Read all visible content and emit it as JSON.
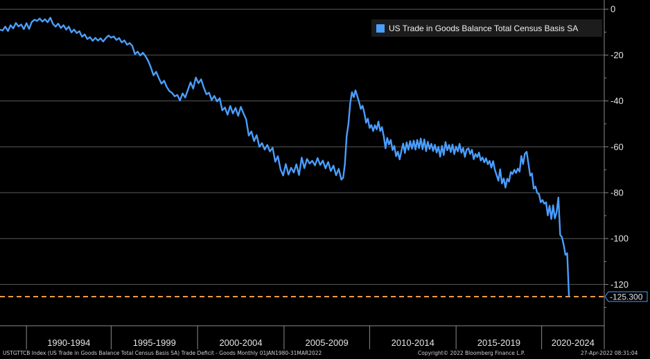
{
  "chart_data": {
    "type": "line",
    "series": [
      {
        "name": "US Trade in Goods Balance Total Census Basis SA",
        "color": "#4a9eff",
        "points": [
          [
            1987.0,
            -8.9
          ],
          [
            1987.3,
            -9.3
          ],
          [
            1987.6,
            -7.6
          ],
          [
            1987.9,
            -9.5
          ],
          [
            1988.2,
            -7.0
          ],
          [
            1988.5,
            -8.4
          ],
          [
            1988.8,
            -6.0
          ],
          [
            1989.1,
            -7.5
          ],
          [
            1989.4,
            -6.7
          ],
          [
            1989.7,
            -8.7
          ],
          [
            1990.0,
            -6.1
          ],
          [
            1990.3,
            -8.6
          ],
          [
            1990.6,
            -5.6
          ],
          [
            1990.9,
            -4.6
          ],
          [
            1991.2,
            -5.1
          ],
          [
            1991.5,
            -4.1
          ],
          [
            1991.8,
            -5.4
          ],
          [
            1992.1,
            -4.4
          ],
          [
            1992.4,
            -5.7
          ],
          [
            1992.7,
            -3.7
          ],
          [
            1993.0,
            -6.4
          ],
          [
            1993.3,
            -7.6
          ],
          [
            1993.6,
            -6.3
          ],
          [
            1993.9,
            -8.2
          ],
          [
            1994.2,
            -7.0
          ],
          [
            1994.5,
            -8.9
          ],
          [
            1994.8,
            -7.6
          ],
          [
            1995.1,
            -10.1
          ],
          [
            1995.4,
            -8.9
          ],
          [
            1995.7,
            -10.4
          ],
          [
            1996.0,
            -9.6
          ],
          [
            1996.3,
            -12.0
          ],
          [
            1996.6,
            -11.0
          ],
          [
            1996.9,
            -13.0
          ],
          [
            1997.2,
            -12.2
          ],
          [
            1997.5,
            -13.8
          ],
          [
            1997.8,
            -12.5
          ],
          [
            1998.1,
            -13.7
          ],
          [
            1998.4,
            -12.7
          ],
          [
            1998.7,
            -14.1
          ],
          [
            1999.0,
            -12.6
          ],
          [
            1999.3,
            -11.5
          ],
          [
            1999.6,
            -12.4
          ],
          [
            1999.9,
            -11.9
          ],
          [
            2000.2,
            -13.4
          ],
          [
            2000.5,
            -12.6
          ],
          [
            2000.8,
            -14.5
          ],
          [
            2001.1,
            -13.6
          ],
          [
            2001.4,
            -15.5
          ],
          [
            2001.7,
            -14.8
          ],
          [
            2002.0,
            -16.0
          ],
          [
            2002.3,
            -19.6
          ],
          [
            2002.6,
            -18.5
          ],
          [
            2002.9,
            -20.2
          ],
          [
            2003.2,
            -19.0
          ],
          [
            2003.5,
            -20.5
          ],
          [
            2003.8,
            -22.6
          ],
          [
            2004.1,
            -25.4
          ],
          [
            2004.4,
            -28.8
          ],
          [
            2004.7,
            -27.3
          ],
          [
            2005.0,
            -30.0
          ],
          [
            2005.3,
            -32.5
          ],
          [
            2005.6,
            -31.2
          ],
          [
            2005.9,
            -33.9
          ],
          [
            2006.2,
            -35.7
          ],
          [
            2006.5,
            -36.5
          ],
          [
            2006.8,
            -38.0
          ],
          [
            2007.1,
            -37.4
          ],
          [
            2007.4,
            -39.8
          ],
          [
            2007.7,
            -36.7
          ],
          [
            2008.0,
            -38.5
          ],
          [
            2008.3,
            -35.2
          ],
          [
            2008.6,
            -31.9
          ],
          [
            2008.9,
            -34.6
          ],
          [
            2009.2,
            -29.8
          ],
          [
            2009.5,
            -32.3
          ],
          [
            2009.8,
            -30.6
          ],
          [
            2010.1,
            -34.2
          ],
          [
            2010.4,
            -37.1
          ],
          [
            2010.7,
            -36.4
          ],
          [
            2011.0,
            -39.6
          ],
          [
            2011.3,
            -37.8
          ],
          [
            2011.6,
            -40.2
          ],
          [
            2011.9,
            -38.8
          ],
          [
            2012.2,
            -44.1
          ],
          [
            2012.5,
            -42.9
          ],
          [
            2012.8,
            -46.0
          ],
          [
            2013.1,
            -42.2
          ],
          [
            2013.4,
            -45.5
          ],
          [
            2013.7,
            -43.0
          ],
          [
            2014.0,
            -46.5
          ],
          [
            2014.3,
            -42.6
          ],
          [
            2014.6,
            -45.4
          ],
          [
            2014.9,
            -48.0
          ],
          [
            2015.2,
            -55.1
          ],
          [
            2015.5,
            -53.3
          ],
          [
            2015.8,
            -57.5
          ],
          [
            2016.1,
            -54.9
          ],
          [
            2016.4,
            -60.0
          ],
          [
            2016.7,
            -58.4
          ],
          [
            2017.0,
            -61.2
          ],
          [
            2017.3,
            -59.2
          ],
          [
            2017.6,
            -62.0
          ],
          [
            2017.9,
            -60.4
          ],
          [
            2018.2,
            -66.5
          ],
          [
            2018.5,
            -64.1
          ],
          [
            2018.8,
            -69.8
          ],
          [
            2019.1,
            -72.5
          ],
          [
            2019.4,
            -67.5
          ],
          [
            2019.7,
            -72.1
          ],
          [
            2020.0,
            -69.1
          ],
          [
            2020.3,
            -71.2
          ],
          [
            2020.6,
            -67.6
          ],
          [
            2020.9,
            -72.3
          ],
          [
            2021.2,
            -64.7
          ],
          [
            2021.5,
            -69.3
          ],
          [
            2021.8,
            -65.3
          ],
          [
            2022.1,
            -67.3
          ],
          [
            2022.4,
            -66.1
          ],
          [
            2022.7,
            -68.1
          ],
          [
            2023.0,
            -64.9
          ],
          [
            2023.3,
            -67.9
          ],
          [
            2023.6,
            -66.0
          ],
          [
            2023.9,
            -69.4
          ],
          [
            2024.2,
            -66.6
          ],
          [
            2024.5,
            -70.6
          ],
          [
            2024.8,
            -68.2
          ],
          [
            2025.1,
            -72.4
          ],
          [
            2025.4,
            -69.6
          ],
          [
            2025.7,
            -74.3
          ],
          [
            2025.9,
            -73.5
          ],
          [
            2026.1,
            -67.5
          ],
          [
            2026.3,
            -55.2
          ],
          [
            2026.5,
            -50.1
          ],
          [
            2026.7,
            -41.0
          ],
          [
            2026.9,
            -36.2
          ],
          [
            2027.1,
            -38.4
          ],
          [
            2027.3,
            -35.4
          ],
          [
            2027.5,
            -37.9
          ],
          [
            2027.7,
            -40.4
          ],
          [
            2027.9,
            -43.5
          ],
          [
            2028.1,
            -42.1
          ],
          [
            2028.3,
            -45.1
          ],
          [
            2028.5,
            -49.5
          ],
          [
            2028.7,
            -47.7
          ],
          [
            2028.9,
            -51.8
          ],
          [
            2029.1,
            -50.5
          ],
          [
            2029.3,
            -53.1
          ],
          [
            2029.5,
            -50.6
          ],
          [
            2029.7,
            -52.4
          ],
          [
            2029.9,
            -49.0
          ],
          [
            2030.1,
            -53.1
          ],
          [
            2030.3,
            -51.4
          ],
          [
            2030.5,
            -55.4
          ],
          [
            2030.7,
            -60.7
          ],
          [
            2030.9,
            -56.1
          ],
          [
            2031.1,
            -59.0
          ],
          [
            2031.3,
            -57.0
          ],
          [
            2031.5,
            -61.4
          ],
          [
            2031.7,
            -59.6
          ],
          [
            2031.9,
            -64.1
          ],
          [
            2032.1,
            -62.1
          ],
          [
            2032.3,
            -65.5
          ],
          [
            2032.5,
            -61.9
          ],
          [
            2032.7,
            -58.6
          ],
          [
            2032.9,
            -62.7
          ],
          [
            2033.1,
            -58.1
          ],
          [
            2033.3,
            -61.3
          ],
          [
            2033.5,
            -57.5
          ],
          [
            2033.7,
            -60.8
          ],
          [
            2033.9,
            -57.3
          ],
          [
            2034.1,
            -61.2
          ],
          [
            2034.3,
            -57.0
          ],
          [
            2034.5,
            -60.6
          ],
          [
            2034.7,
            -56.4
          ],
          [
            2034.9,
            -61.1
          ],
          [
            2035.1,
            -56.8
          ],
          [
            2035.3,
            -61.9
          ],
          [
            2035.5,
            -57.8
          ],
          [
            2035.7,
            -61.0
          ],
          [
            2035.9,
            -58.7
          ],
          [
            2036.1,
            -61.8
          ],
          [
            2036.3,
            -59.1
          ],
          [
            2036.5,
            -62.5
          ],
          [
            2036.7,
            -60.0
          ],
          [
            2036.9,
            -64.3
          ],
          [
            2037.1,
            -59.6
          ],
          [
            2037.3,
            -63.6
          ],
          [
            2037.5,
            -57.9
          ],
          [
            2037.7,
            -61.5
          ],
          [
            2037.9,
            -59.2
          ],
          [
            2038.1,
            -62.3
          ],
          [
            2038.3,
            -59.0
          ],
          [
            2038.5,
            -63.2
          ],
          [
            2038.7,
            -59.9
          ],
          [
            2038.9,
            -62.0
          ],
          [
            2039.1,
            -58.7
          ],
          [
            2039.3,
            -62.6
          ],
          [
            2039.5,
            -60.5
          ],
          [
            2039.7,
            -64.4
          ],
          [
            2039.9,
            -61.2
          ],
          [
            2040.1,
            -60.7
          ],
          [
            2040.3,
            -63.1
          ],
          [
            2040.5,
            -61.3
          ],
          [
            2040.7,
            -65.4
          ],
          [
            2040.9,
            -63.1
          ],
          [
            2041.1,
            -64.5
          ],
          [
            2041.3,
            -62.5
          ],
          [
            2041.5,
            -66.0
          ],
          [
            2041.7,
            -64.6
          ],
          [
            2041.9,
            -66.8
          ],
          [
            2042.1,
            -65.0
          ],
          [
            2042.3,
            -67.6
          ],
          [
            2042.5,
            -66.1
          ],
          [
            2042.7,
            -69.1
          ],
          [
            2042.9,
            -66.2
          ],
          [
            2043.1,
            -70.0
          ],
          [
            2043.3,
            -72.4
          ],
          [
            2043.5,
            -74.8
          ],
          [
            2043.7,
            -69.8
          ],
          [
            2043.9,
            -76.0
          ],
          [
            2044.1,
            -73.8
          ],
          [
            2044.3,
            -77.8
          ],
          [
            2044.5,
            -73.9
          ],
          [
            2044.7,
            -75.2
          ],
          [
            2044.9,
            -71.0
          ],
          [
            2045.1,
            -71.9
          ],
          [
            2045.3,
            -70.0
          ],
          [
            2045.5,
            -71.4
          ],
          [
            2045.7,
            -69.5
          ],
          [
            2045.9,
            -70.8
          ],
          [
            2046.1,
            -64.0
          ],
          [
            2046.3,
            -67.5
          ],
          [
            2046.5,
            -63.0
          ],
          [
            2046.7,
            -62.2
          ],
          [
            2046.9,
            -67.2
          ],
          [
            2047.1,
            -72.6
          ],
          [
            2047.3,
            -71.6
          ],
          [
            2047.5,
            -78.2
          ],
          [
            2047.7,
            -77.3
          ],
          [
            2047.9,
            -80.1
          ],
          [
            2048.1,
            -80.6
          ],
          [
            2048.3,
            -84.2
          ],
          [
            2048.5,
            -83.2
          ],
          [
            2048.7,
            -84.8
          ],
          [
            2048.9,
            -84.2
          ],
          [
            2049.1,
            -89.9
          ],
          [
            2049.3,
            -85.7
          ],
          [
            2049.5,
            -91.5
          ],
          [
            2049.7,
            -85.5
          ],
          [
            2049.9,
            -91.2
          ],
          [
            2050.1,
            -88.4
          ],
          [
            2050.3,
            -82.1
          ],
          [
            2050.5,
            -98.4
          ],
          [
            2050.7,
            -99.4
          ],
          [
            2050.9,
            -102.7
          ],
          [
            2051.1,
            -107.1
          ],
          [
            2051.3,
            -106.4
          ],
          [
            2051.5,
            -125.3
          ]
        ]
      }
    ],
    "x_axis": {
      "labels": [
        "1990-1994",
        "1995-1999",
        "2000-2004",
        "2005-2009",
        "2010-2014",
        "2015-2019",
        "2020-2024"
      ],
      "range": [
        1987.0,
        2055.5
      ]
    },
    "y_axis": {
      "ticks": [
        0,
        -20,
        -40,
        -60,
        -80,
        -100,
        -120
      ],
      "range": [
        4.0,
        -138.0
      ],
      "side": "right"
    },
    "last_value": -125.3,
    "last_value_label": "-125.300",
    "reference_line": {
      "value": -125.3,
      "color": "#f39c46",
      "style": "dashed"
    },
    "grid": true,
    "legend_position": "top-right"
  },
  "footer": {
    "left": "USTGTTCB Index (US Trade in Goods Balance Total Census Basis SA) Trade Deficit - Goods Monthly 01JAN1980-31MAR2022",
    "center": "Copyright© 2022 Bloomberg Finance L.P.",
    "right": "27-Apr-2022 08:31:04"
  },
  "colors": {
    "background": "#000000",
    "line": "#4a9eff",
    "grid": "#5a5a5a",
    "axis": "#8a8a8a",
    "text": "#e6e6e6",
    "reference": "#f39c46"
  }
}
